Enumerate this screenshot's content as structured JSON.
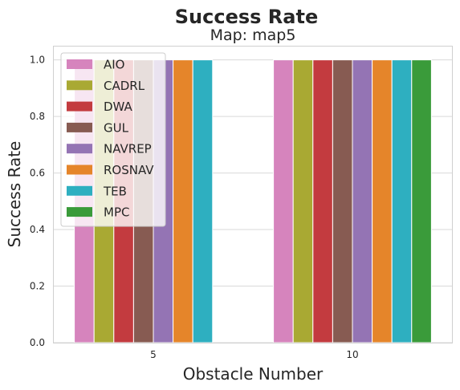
{
  "chart_data": {
    "type": "bar",
    "title": "Success Rate",
    "subtitle": "Map: map5",
    "xlabel": "Obstacle Number",
    "ylabel": "Success Rate",
    "categories": [
      "5",
      "10"
    ],
    "ylim": [
      0,
      1.05
    ],
    "yticks": [
      "0.0",
      "0.2",
      "0.4",
      "0.6",
      "0.8",
      "1.0"
    ],
    "grid": true,
    "legend_position": "top-left",
    "series": [
      {
        "name": "AIO",
        "color": "#d684bd",
        "values": [
          1.0,
          1.0
        ]
      },
      {
        "name": "CADRL",
        "color": "#a9a933",
        "values": [
          1.0,
          1.0
        ]
      },
      {
        "name": "DWA",
        "color": "#c33b3f",
        "values": [
          1.0,
          1.0
        ]
      },
      {
        "name": "GUL",
        "color": "#875b52",
        "values": [
          1.0,
          1.0
        ]
      },
      {
        "name": "NAVREP",
        "color": "#9474b4",
        "values": [
          1.0,
          1.0
        ]
      },
      {
        "name": "ROSNAV",
        "color": "#e5852a",
        "values": [
          1.0,
          1.0
        ]
      },
      {
        "name": "TEB",
        "color": "#2eafc0",
        "values": [
          1.0,
          1.0
        ]
      },
      {
        "name": "MPC",
        "color": "#3a9b3a",
        "values": [
          null,
          1.0
        ]
      }
    ]
  }
}
